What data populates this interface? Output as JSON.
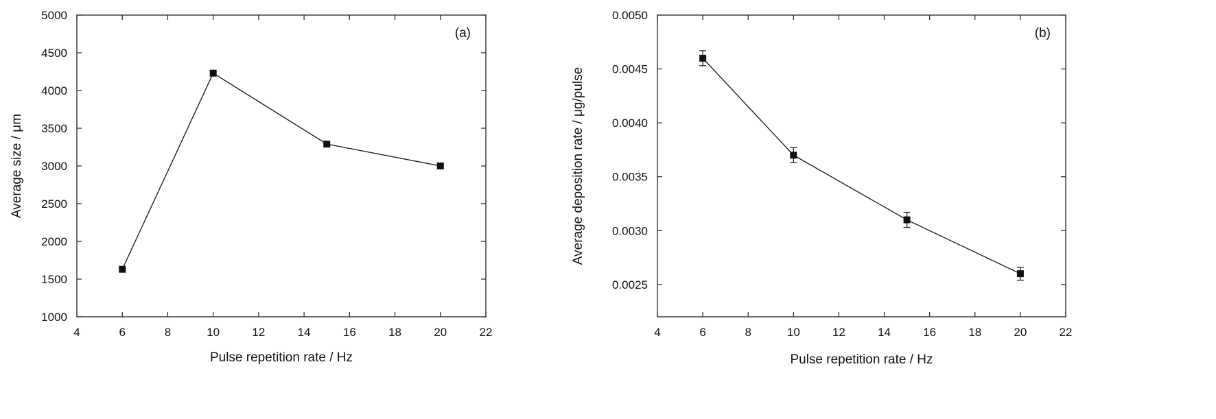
{
  "chart_data": [
    {
      "type": "line",
      "panel_label": "(a)",
      "xlabel": "Pulse repetition rate / Hz",
      "ylabel": "Average size / μm",
      "xlim": [
        4,
        22
      ],
      "ylim": [
        1000,
        5000
      ],
      "xticks": [
        "4",
        "6",
        "8",
        "10",
        "12",
        "14",
        "16",
        "18",
        "20",
        "22"
      ],
      "yticks": [
        "1000",
        "1500",
        "2000",
        "2500",
        "3000",
        "3500",
        "4000",
        "4500",
        "5000"
      ],
      "grid": false,
      "marker": "square",
      "error_bars": false,
      "series": [
        {
          "x": [
            6,
            10,
            15,
            20
          ],
          "y": [
            1630,
            4230,
            3290,
            3000
          ]
        }
      ]
    },
    {
      "type": "line",
      "panel_label": "(b)",
      "xlabel": "Pulse repetition rate / Hz",
      "ylabel": "Average deposition rate / μg/pulse",
      "xlim": [
        4,
        22
      ],
      "ylim": [
        0.0022,
        0.005
      ],
      "xticks": [
        "4",
        "6",
        "8",
        "10",
        "12",
        "14",
        "16",
        "18",
        "20",
        "22"
      ],
      "yticks": [
        "0.0025",
        "0.0030",
        "0.0035",
        "0.0040",
        "0.0045",
        "0.0050"
      ],
      "grid": false,
      "marker": "square",
      "error_bars": true,
      "series": [
        {
          "x": [
            6,
            10,
            15,
            20
          ],
          "y": [
            0.0046,
            0.0037,
            0.0031,
            0.0026
          ],
          "yerr": [
            7e-05,
            7e-05,
            7e-05,
            6e-05
          ]
        }
      ]
    }
  ],
  "style": {
    "line_color": "#222222",
    "marker_color": "#111111",
    "axis_color": "#222222"
  }
}
